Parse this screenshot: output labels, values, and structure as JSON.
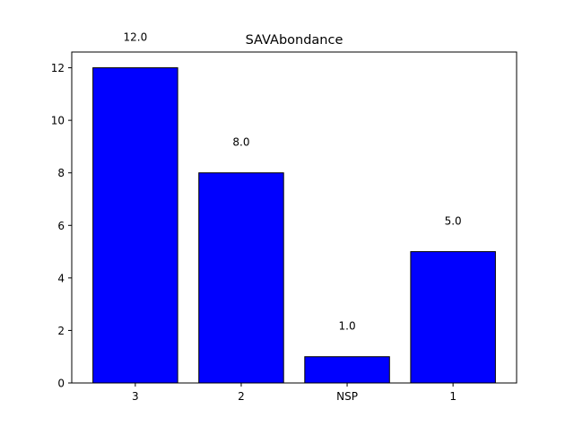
{
  "chart_data": {
    "type": "bar",
    "title": "SAVAbondance",
    "xlabel": "",
    "ylabel": "",
    "categories": [
      "3",
      "2",
      "NSP",
      "1"
    ],
    "values": [
      12,
      8,
      1,
      5
    ],
    "data_labels": [
      "12.0",
      "8.0",
      "1.0",
      "5.0"
    ],
    "ylim": [
      0,
      12.6
    ],
    "yticks": [
      0,
      2,
      4,
      6,
      8,
      10,
      12
    ],
    "ytick_labels": [
      "0",
      "2",
      "4",
      "6",
      "8",
      "10",
      "12"
    ],
    "bar_color": "#0000ff",
    "bar_edge_color": "#000000",
    "grid": false,
    "legend": "none"
  }
}
